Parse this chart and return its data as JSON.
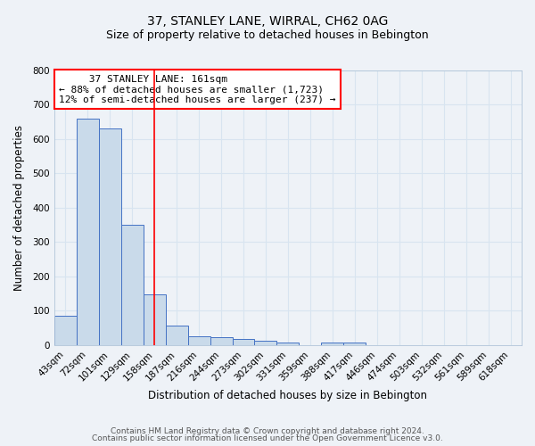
{
  "title": "37, STANLEY LANE, WIRRAL, CH62 0AG",
  "subtitle": "Size of property relative to detached houses in Bebington",
  "xlabel": "Distribution of detached houses by size in Bebington",
  "ylabel": "Number of detached properties",
  "categories": [
    "43sqm",
    "72sqm",
    "101sqm",
    "129sqm",
    "158sqm",
    "187sqm",
    "216sqm",
    "244sqm",
    "273sqm",
    "302sqm",
    "331sqm",
    "359sqm",
    "388sqm",
    "417sqm",
    "446sqm",
    "474sqm",
    "503sqm",
    "532sqm",
    "561sqm",
    "589sqm",
    "618sqm"
  ],
  "values": [
    85,
    660,
    630,
    350,
    148,
    58,
    25,
    22,
    18,
    12,
    8,
    0,
    8,
    8,
    0,
    0,
    0,
    0,
    0,
    0,
    0
  ],
  "bar_color": "#c9daea",
  "bar_edge_color": "#4472c4",
  "red_line_x": 4.0,
  "annotation_line1": "     37 STANLEY LANE: 161sqm",
  "annotation_line2": "← 88% of detached houses are smaller (1,723)",
  "annotation_line3": "12% of semi-detached houses are larger (237) →",
  "footer_line1": "Contains HM Land Registry data © Crown copyright and database right 2024.",
  "footer_line2": "Contains public sector information licensed under the Open Government Licence v3.0.",
  "ylim": [
    0,
    800
  ],
  "yticks": [
    0,
    100,
    200,
    300,
    400,
    500,
    600,
    700,
    800
  ],
  "bg_color": "#eef2f7",
  "grid_color": "#d8e4f0",
  "title_fontsize": 10,
  "subtitle_fontsize": 9,
  "axis_label_fontsize": 8.5,
  "tick_fontsize": 7.5,
  "footer_fontsize": 6.5,
  "annotation_fontsize": 8
}
